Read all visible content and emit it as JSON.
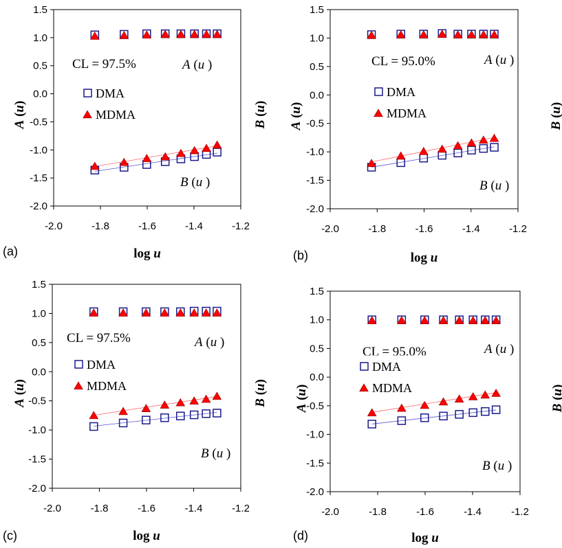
{
  "chart_data": [
    {
      "type": "scatter",
      "panel_label": "(a)",
      "xlabel": "log u",
      "ylabel_left": "A (u)",
      "ylabel_right": "B (u)",
      "xlim": [
        -2.0,
        -1.2
      ],
      "ylim": [
        -2.0,
        1.5
      ],
      "x_ticks": [
        "-2.0",
        "-1.8",
        "-1.6",
        "-1.4",
        "-1.2"
      ],
      "y_ticks": [
        "1.5",
        "1.0",
        "0.5",
        "0.0",
        "-0.5",
        "-1.0",
        "-1.5",
        "-2.0"
      ],
      "cl_text": "CL = 97.5%",
      "a_annotation": "A (u)",
      "b_annotation": "B (u)",
      "legend": [
        "DMA",
        "MDMA"
      ],
      "x": [
        -1.824,
        -1.699,
        -1.602,
        -1.523,
        -1.456,
        -1.398,
        -1.347,
        -1.301
      ],
      "series": [
        {
          "name": "DMA A(u)",
          "values": [
            1.05,
            1.06,
            1.07,
            1.07,
            1.07,
            1.07,
            1.07,
            1.07
          ]
        },
        {
          "name": "MDMA A(u)",
          "values": [
            1.04,
            1.05,
            1.06,
            1.07,
            1.07,
            1.07,
            1.07,
            1.07
          ]
        },
        {
          "name": "DMA B(u)",
          "values": [
            -1.36,
            -1.31,
            -1.26,
            -1.21,
            -1.16,
            -1.12,
            -1.08,
            -1.04
          ]
        },
        {
          "name": "MDMA B(u)",
          "values": [
            -1.28,
            -1.21,
            -1.14,
            -1.11,
            -1.05,
            -1.0,
            -0.96,
            -0.9
          ]
        }
      ]
    },
    {
      "type": "scatter",
      "panel_label": "(b)",
      "xlabel": "log u",
      "ylabel_left": "A (u)",
      "ylabel_right": "B (u)",
      "xlim": [
        -2.0,
        -1.2
      ],
      "ylim": [
        -2.0,
        1.5
      ],
      "x_ticks": [
        "-2.0",
        "-1.8",
        "-1.6",
        "-1.4",
        "-1.2"
      ],
      "y_ticks": [
        "1.5",
        "1.0",
        "0.5",
        "0.0",
        "-0.5",
        "-1.0",
        "-1.5",
        "-2.0"
      ],
      "cl_text": "CL = 95.0%",
      "a_annotation": "A (u)",
      "b_annotation": "B (u)",
      "legend": [
        "DMA",
        "MDMA"
      ],
      "x": [
        -1.824,
        -1.699,
        -1.602,
        -1.523,
        -1.456,
        -1.398,
        -1.347,
        -1.301
      ],
      "series": [
        {
          "name": "DMA A(u)",
          "values": [
            1.06,
            1.07,
            1.07,
            1.08,
            1.07,
            1.07,
            1.07,
            1.07
          ]
        },
        {
          "name": "MDMA A(u)",
          "values": [
            1.06,
            1.07,
            1.07,
            1.08,
            1.07,
            1.07,
            1.07,
            1.07
          ]
        },
        {
          "name": "DMA B(u)",
          "values": [
            -1.27,
            -1.19,
            -1.11,
            -1.06,
            -1.02,
            -0.97,
            -0.94,
            -0.92
          ]
        },
        {
          "name": "MDMA B(u)",
          "values": [
            -1.19,
            -1.06,
            -0.98,
            -0.94,
            -0.88,
            -0.83,
            -0.78,
            -0.75
          ]
        }
      ]
    },
    {
      "type": "scatter",
      "panel_label": "(c)",
      "xlabel": "log u",
      "ylabel_left": "A (u)",
      "ylabel_right": "B (u)",
      "xlim": [
        -2.0,
        -1.2
      ],
      "ylim": [
        -2.0,
        1.5
      ],
      "x_ticks": [
        "-2.0",
        "-1.8",
        "-1.6",
        "-1.4",
        "-1.2"
      ],
      "y_ticks": [
        "1.5",
        "1.0",
        "0.5",
        "0.0",
        "-0.5",
        "-1.0",
        "-1.5",
        "-2.0"
      ],
      "cl_text": "CL = 97.5%",
      "a_annotation": "A (u)",
      "b_annotation": "B (u)",
      "legend": [
        "DMA",
        "MDMA"
      ],
      "x": [
        -1.824,
        -1.699,
        -1.602,
        -1.523,
        -1.456,
        -1.398,
        -1.347,
        -1.301
      ],
      "series": [
        {
          "name": "DMA A(u)",
          "values": [
            1.03,
            1.03,
            1.03,
            1.03,
            1.03,
            1.04,
            1.04,
            1.04
          ]
        },
        {
          "name": "MDMA A(u)",
          "values": [
            1.02,
            1.02,
            1.02,
            1.02,
            1.02,
            1.02,
            1.02,
            1.02
          ]
        },
        {
          "name": "DMA B(u)",
          "values": [
            -0.94,
            -0.88,
            -0.83,
            -0.79,
            -0.76,
            -0.74,
            -0.72,
            -0.71
          ]
        },
        {
          "name": "MDMA B(u)",
          "values": [
            -0.74,
            -0.67,
            -0.62,
            -0.56,
            -0.52,
            -0.49,
            -0.46,
            -0.41
          ]
        }
      ]
    },
    {
      "type": "scatter",
      "panel_label": "(d)",
      "xlabel": "log u",
      "ylabel_left": "A (u)",
      "ylabel_right": "B (u)",
      "xlim": [
        -2.0,
        -1.2
      ],
      "ylim": [
        -2.0,
        1.5
      ],
      "x_ticks": [
        "-2.0",
        "-1.8",
        "-1.6",
        "-1.4",
        "-1.2"
      ],
      "y_ticks": [
        "1.5",
        "1.0",
        "0.5",
        "0.0",
        "-0.5",
        "-1.0",
        "-1.5",
        "-2.0"
      ],
      "cl_text": "CL = 95.0%",
      "a_annotation": "A (u)",
      "b_annotation": "B (u)",
      "legend": [
        "DMA",
        "MDMA"
      ],
      "x": [
        -1.824,
        -1.699,
        -1.602,
        -1.523,
        -1.456,
        -1.398,
        -1.347,
        -1.301
      ],
      "series": [
        {
          "name": "DMA A(u)",
          "values": [
            1.0,
            1.0,
            1.0,
            1.0,
            1.0,
            1.0,
            1.0,
            1.0
          ]
        },
        {
          "name": "MDMA A(u)",
          "values": [
            1.0,
            1.0,
            1.0,
            1.0,
            1.0,
            1.0,
            1.0,
            1.0
          ]
        },
        {
          "name": "DMA B(u)",
          "values": [
            -0.82,
            -0.76,
            -0.71,
            -0.68,
            -0.65,
            -0.62,
            -0.6,
            -0.57
          ]
        },
        {
          "name": "MDMA B(u)",
          "values": [
            -0.61,
            -0.53,
            -0.48,
            -0.42,
            -0.37,
            -0.33,
            -0.3,
            -0.27
          ]
        }
      ]
    }
  ],
  "colors": {
    "dma": "#1a1a8c",
    "mdma": "#ff0000",
    "mdma_edge": "#8b0000"
  }
}
